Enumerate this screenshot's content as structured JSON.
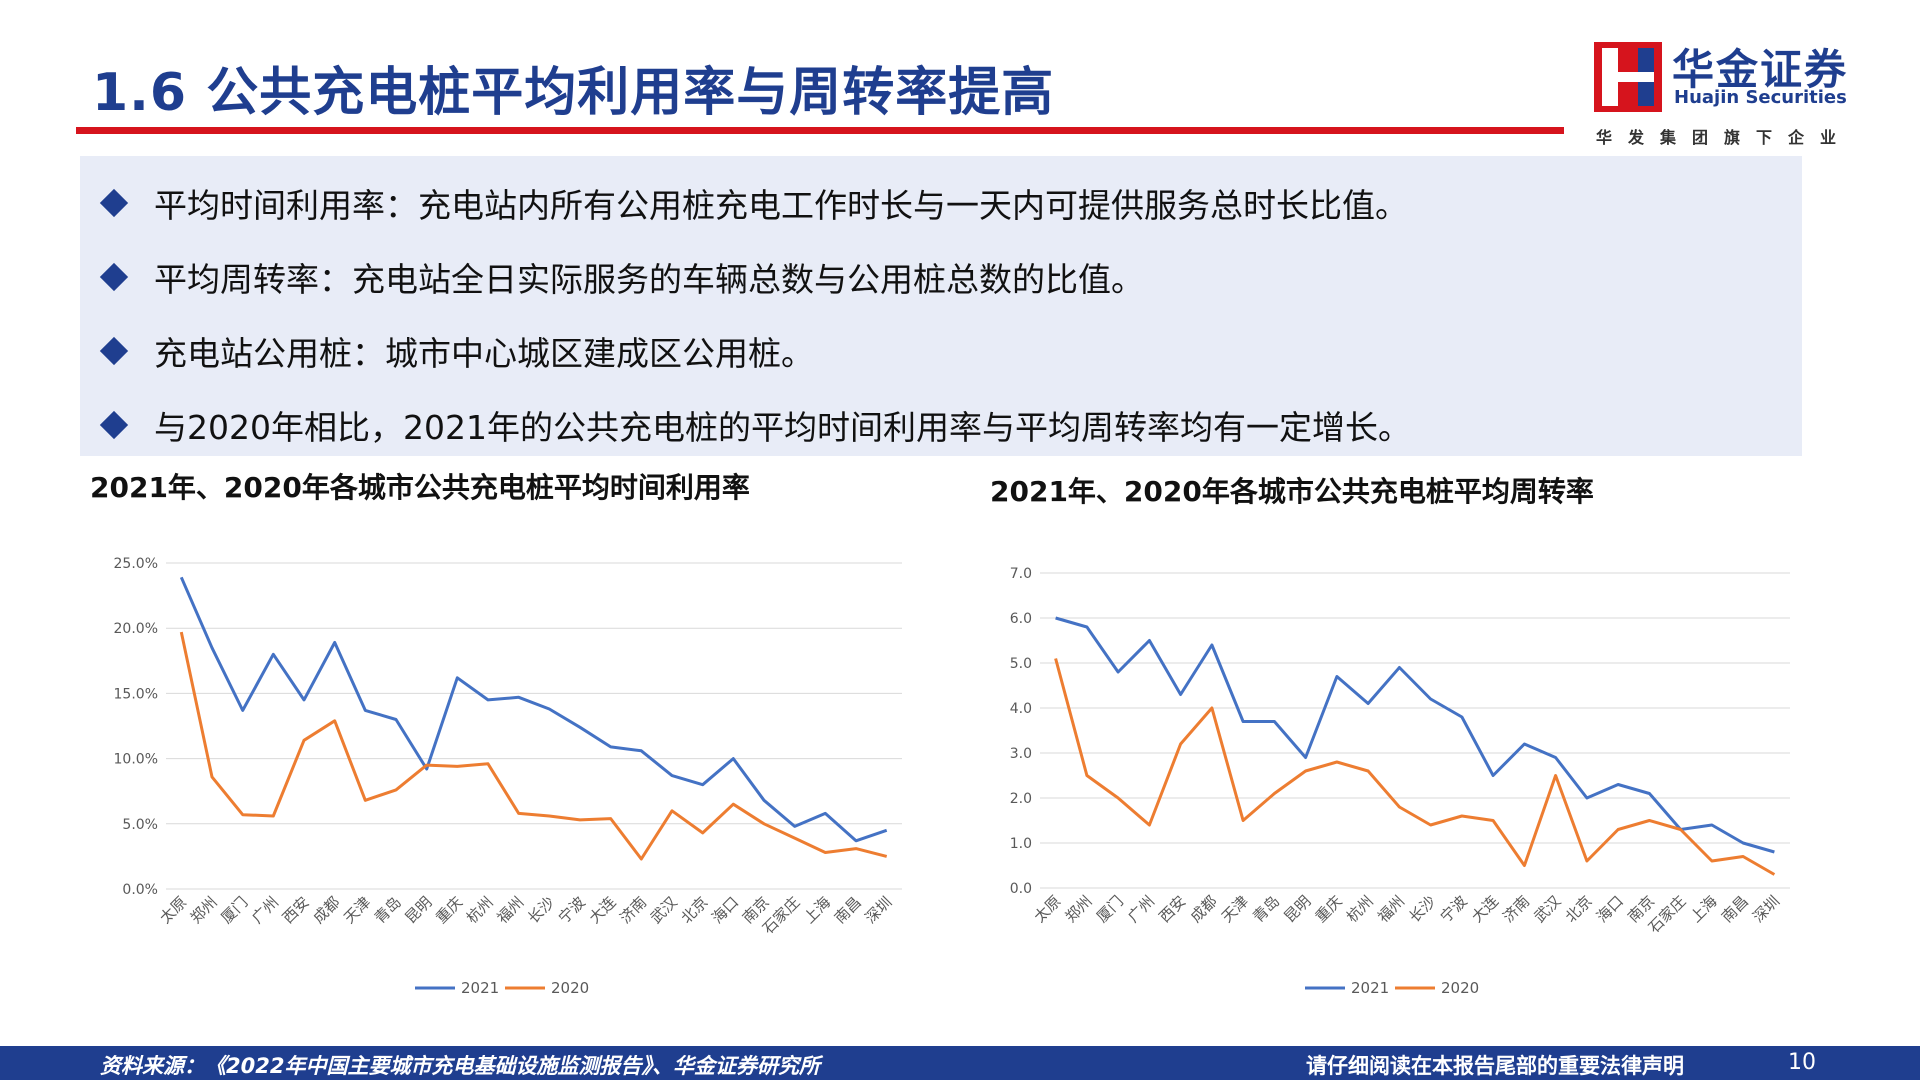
{
  "header": {
    "title": "1.6 公共充电桩平均利用率与周转率提高",
    "logo_cn": "华金证券",
    "logo_en": "Huajin Securities",
    "logo_sub": "华发集团旗下企业"
  },
  "bullets": [
    "平均时间利用率：充电站内所有公用桩充电工作时长与一天内可提供服务总时长比值。",
    "平均周转率：充电站全日实际服务的车辆总数与公用桩总数的比值。",
    "充电站公用桩：城市中心城区建成区公用桩。",
    "与2020年相比，2021年的公共充电桩的平均时间利用率与平均周转率均有一定增长。"
  ],
  "colors": {
    "brand_blue": "#1f3e8f",
    "brand_red": "#d6141d",
    "series_2021": "#4472c4",
    "series_2020": "#ed7d31"
  },
  "chart_data": [
    {
      "type": "line",
      "title": "2021年、2020年各城市公共充电桩平均时间利用率",
      "categories": [
        "太原",
        "郑州",
        "厦门",
        "广州",
        "西安",
        "成都",
        "天津",
        "青岛",
        "昆明",
        "重庆",
        "杭州",
        "福州",
        "长沙",
        "宁波",
        "大连",
        "济南",
        "武汉",
        "北京",
        "海口",
        "南京",
        "石家庄",
        "上海",
        "南昌",
        "深圳"
      ],
      "ylim": [
        0,
        25
      ],
      "yticks": [
        "25.0%",
        "20.0%",
        "15.0%",
        "10.0%",
        "5.0%",
        "0.0%"
      ],
      "ytick_values": [
        25,
        20,
        15,
        10,
        5,
        0
      ],
      "grid": true,
      "legend_position": "bottom",
      "series": [
        {
          "name": "2021",
          "values": [
            23.9,
            18.5,
            13.7,
            18.0,
            14.5,
            18.9,
            13.7,
            13.0,
            9.2,
            16.2,
            14.5,
            14.7,
            13.8,
            12.4,
            10.9,
            10.6,
            8.7,
            8.0,
            10.0,
            6.8,
            4.8,
            5.8,
            3.7,
            4.5
          ]
        },
        {
          "name": "2020",
          "values": [
            19.7,
            8.6,
            5.7,
            5.6,
            11.4,
            12.9,
            6.8,
            7.6,
            9.5,
            9.4,
            9.6,
            5.8,
            5.6,
            5.3,
            5.4,
            2.3,
            6.0,
            4.3,
            6.5,
            5.0,
            3.9,
            2.8,
            3.1,
            2.5
          ]
        }
      ]
    },
    {
      "type": "line",
      "title": "2021年、2020年各城市公共充电桩平均周转率",
      "categories": [
        "太原",
        "郑州",
        "厦门",
        "广州",
        "西安",
        "成都",
        "天津",
        "青岛",
        "昆明",
        "重庆",
        "杭州",
        "福州",
        "长沙",
        "宁波",
        "大连",
        "济南",
        "武汉",
        "北京",
        "海口",
        "南京",
        "石家庄",
        "上海",
        "南昌",
        "深圳"
      ],
      "ylim": [
        0,
        7
      ],
      "yticks": [
        "7.0",
        "6.0",
        "5.0",
        "4.0",
        "3.0",
        "2.0",
        "1.0",
        "0.0"
      ],
      "ytick_values": [
        7,
        6,
        5,
        4,
        3,
        2,
        1,
        0
      ],
      "grid": true,
      "legend_position": "bottom",
      "series": [
        {
          "name": "2021",
          "values": [
            6.0,
            5.8,
            4.8,
            5.5,
            4.3,
            5.4,
            3.7,
            3.7,
            2.9,
            4.7,
            4.1,
            4.9,
            4.2,
            3.8,
            2.5,
            3.2,
            2.9,
            2.0,
            2.3,
            2.1,
            1.3,
            1.4,
            1.0,
            0.8
          ]
        },
        {
          "name": "2020",
          "values": [
            5.1,
            2.5,
            2.0,
            1.4,
            3.2,
            4.0,
            1.5,
            2.1,
            2.6,
            2.8,
            2.6,
            1.8,
            1.4,
            1.6,
            1.5,
            0.5,
            2.5,
            0.6,
            1.3,
            1.5,
            1.3,
            0.6,
            0.7,
            0.3
          ]
        }
      ]
    }
  ],
  "footer": {
    "source": "资料来源：《2022年中国主要城市充电基础设施监测报告》、华金证券研究所",
    "legal": "请仔细阅读在本报告尾部的重要法律声明",
    "page": "10"
  }
}
